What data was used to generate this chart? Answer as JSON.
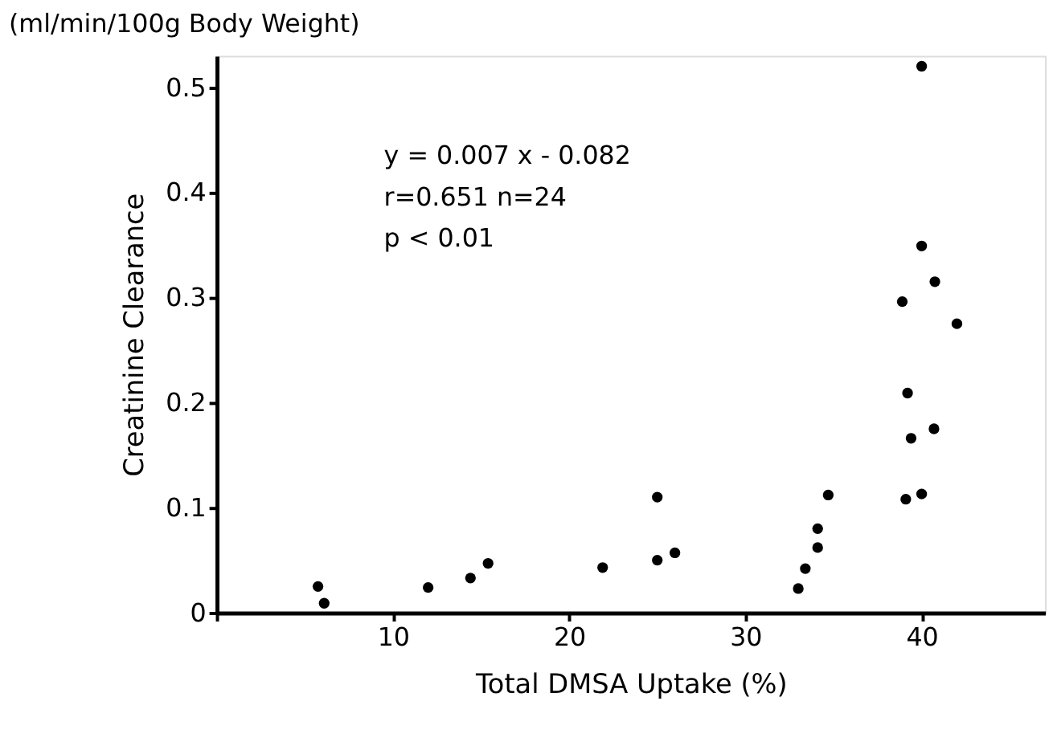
{
  "chart_data": {
    "type": "scatter",
    "title": "(ml/min/100g Body Weight)",
    "xlabel": "Total DMSA Uptake (%)",
    "ylabel": "Creatinine Clearance",
    "x": [
      5.75,
      6.1,
      12.0,
      14.4,
      15.4,
      21.9,
      25.0,
      25.0,
      26.0,
      33.0,
      33.4,
      34.1,
      34.1,
      34.7,
      38.9,
      39.1,
      39.2,
      39.4,
      40.0,
      40.0,
      40.0,
      40.7,
      40.75,
      42.0
    ],
    "series": [
      {
        "color": "#000000",
        "values": [
          0.025,
          0.009,
          0.024,
          0.033,
          0.047,
          0.043,
          0.11,
          0.05,
          0.057,
          0.023,
          0.042,
          0.062,
          0.08,
          0.112,
          0.296,
          0.108,
          0.209,
          0.166,
          0.52,
          0.349,
          0.113,
          0.175,
          0.315,
          0.275
        ]
      }
    ],
    "xlim": [
      0,
      47
    ],
    "xticks": [
      {
        "value": 0,
        "label": null
      },
      10,
      20,
      30,
      40
    ],
    "ylim": [
      0,
      0.53
    ],
    "yticks": [
      0,
      0.1,
      0.2,
      0.3,
      0.4,
      0.5
    ],
    "annotations": [
      "y = 0.007 x - 0.082",
      "r=0.651       n=24",
      "p < 0.01"
    ],
    "grid": false,
    "legend": false,
    "marker": "circle"
  }
}
